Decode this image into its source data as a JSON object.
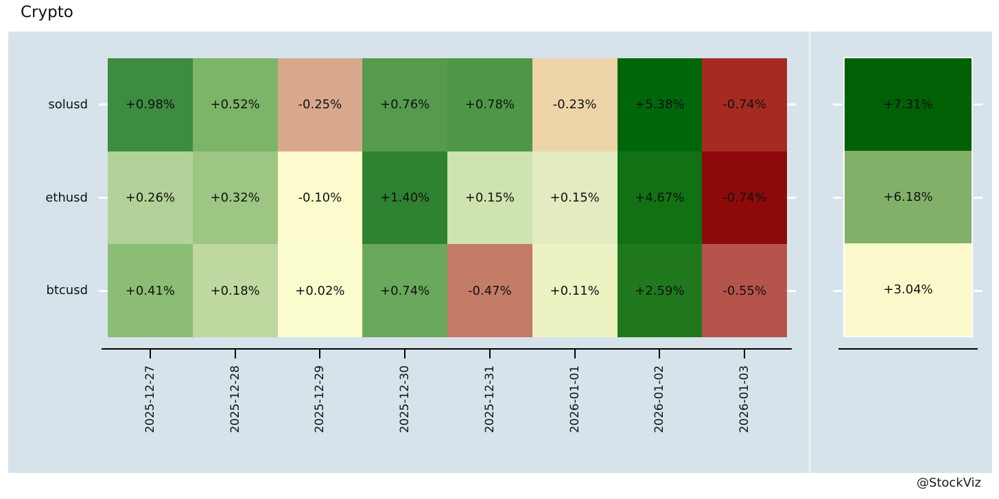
{
  "title": "Crypto",
  "watermark": "@StockViz",
  "colors": {
    "page_bg": "#ffffff",
    "panel_bg": "#d6e3eb",
    "axis": "#000000",
    "y_tick": "#ffffff",
    "text": "#111111"
  },
  "chart_data": {
    "type": "heatmap",
    "title": "Crypto",
    "xlabel": "",
    "ylabel": "",
    "grid": false,
    "legend": "none",
    "x_tick_rotation": 90,
    "columns": [
      "2025-12-27",
      "2025-12-28",
      "2025-12-29",
      "2025-12-30",
      "2025-12-31",
      "2026-01-01",
      "2026-01-02",
      "2026-01-03"
    ],
    "rows": [
      "solusd",
      "ethusd",
      "btcusd"
    ],
    "series": [
      {
        "name": "solusd",
        "cells": [
          {
            "label": "+0.98%",
            "value": 0.98,
            "color": "#3d8c3f"
          },
          {
            "label": "+0.52%",
            "value": 0.52,
            "color": "#7cb567"
          },
          {
            "label": "-0.25%",
            "value": -0.25,
            "color": "#d9a88c"
          },
          {
            "label": "+0.76%",
            "value": 0.76,
            "color": "#569a4e"
          },
          {
            "label": "+0.78%",
            "value": 0.78,
            "color": "#4f9748"
          },
          {
            "label": "-0.23%",
            "value": -0.23,
            "color": "#edd4a9"
          },
          {
            "label": "+5.38%",
            "value": 5.38,
            "color": "#00660a"
          },
          {
            "label": "-0.74%",
            "value": -0.74,
            "color": "#a52a21"
          }
        ],
        "total": {
          "label": "+7.31%",
          "value": 7.31,
          "color": "#006004"
        }
      },
      {
        "name": "ethusd",
        "cells": [
          {
            "label": "+0.26%",
            "value": 0.26,
            "color": "#b3d29a"
          },
          {
            "label": "+0.32%",
            "value": 0.32,
            "color": "#9dc584"
          },
          {
            "label": "-0.10%",
            "value": -0.1,
            "color": "#fbfbce"
          },
          {
            "label": "+1.40%",
            "value": 1.4,
            "color": "#2e8231"
          },
          {
            "label": "+0.15%",
            "value": 0.15,
            "color": "#cfe3ae"
          },
          {
            "label": "+0.15%",
            "value": 0.15,
            "color": "#e2ecc0"
          },
          {
            "label": "+4.67%",
            "value": 4.67,
            "color": "#127112"
          },
          {
            "label": "-0.74%",
            "value": -0.74,
            "color": "#8e0a0a"
          }
        ],
        "total": {
          "label": "+6.18%",
          "value": 6.18,
          "color": "#82b068"
        }
      },
      {
        "name": "btcusd",
        "cells": [
          {
            "label": "+0.41%",
            "value": 0.41,
            "color": "#8cbd76"
          },
          {
            "label": "+0.18%",
            "value": 0.18,
            "color": "#bed89f"
          },
          {
            "label": "+0.02%",
            "value": 0.02,
            "color": "#fbfcce"
          },
          {
            "label": "+0.74%",
            "value": 0.74,
            "color": "#6aa85c"
          },
          {
            "label": "-0.47%",
            "value": -0.47,
            "color": "#c47c67"
          },
          {
            "label": "+0.11%",
            "value": 0.11,
            "color": "#edf2c2"
          },
          {
            "label": "+2.59%",
            "value": 2.59,
            "color": "#20781d"
          },
          {
            "label": "-0.55%",
            "value": -0.55,
            "color": "#b5544a"
          }
        ],
        "total": {
          "label": "+3.04%",
          "value": 3.04,
          "color": "#fbf9cb"
        }
      }
    ]
  }
}
